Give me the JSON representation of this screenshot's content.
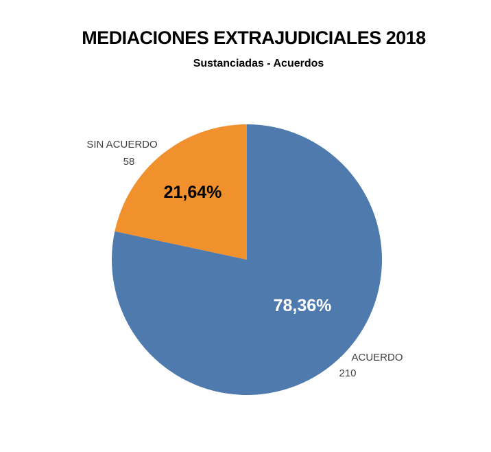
{
  "chart_data": {
    "type": "pie",
    "title": "MEDIACIONES EXTRAJUDICIALES 2018",
    "subtitle": "Sustanciadas - Acuerdos",
    "categories": [
      "ACUERDO",
      "SIN ACUERDO"
    ],
    "values": [
      210,
      58
    ],
    "percents": [
      78.36,
      21.64
    ],
    "percent_labels": [
      "78,36%",
      "21,64%"
    ],
    "colors": [
      "#4e7aad",
      "#f0912d"
    ],
    "start_angle_deg": 0,
    "direction": "clockwise",
    "legend_position": "none",
    "background_color": "#ffffff",
    "label_colors": {
      "outside_labels": "#3f3f3f",
      "percent_on_acuerdo_slice": "#ffffff",
      "percent_on_sin_acuerdo_slice": "#000000"
    }
  }
}
